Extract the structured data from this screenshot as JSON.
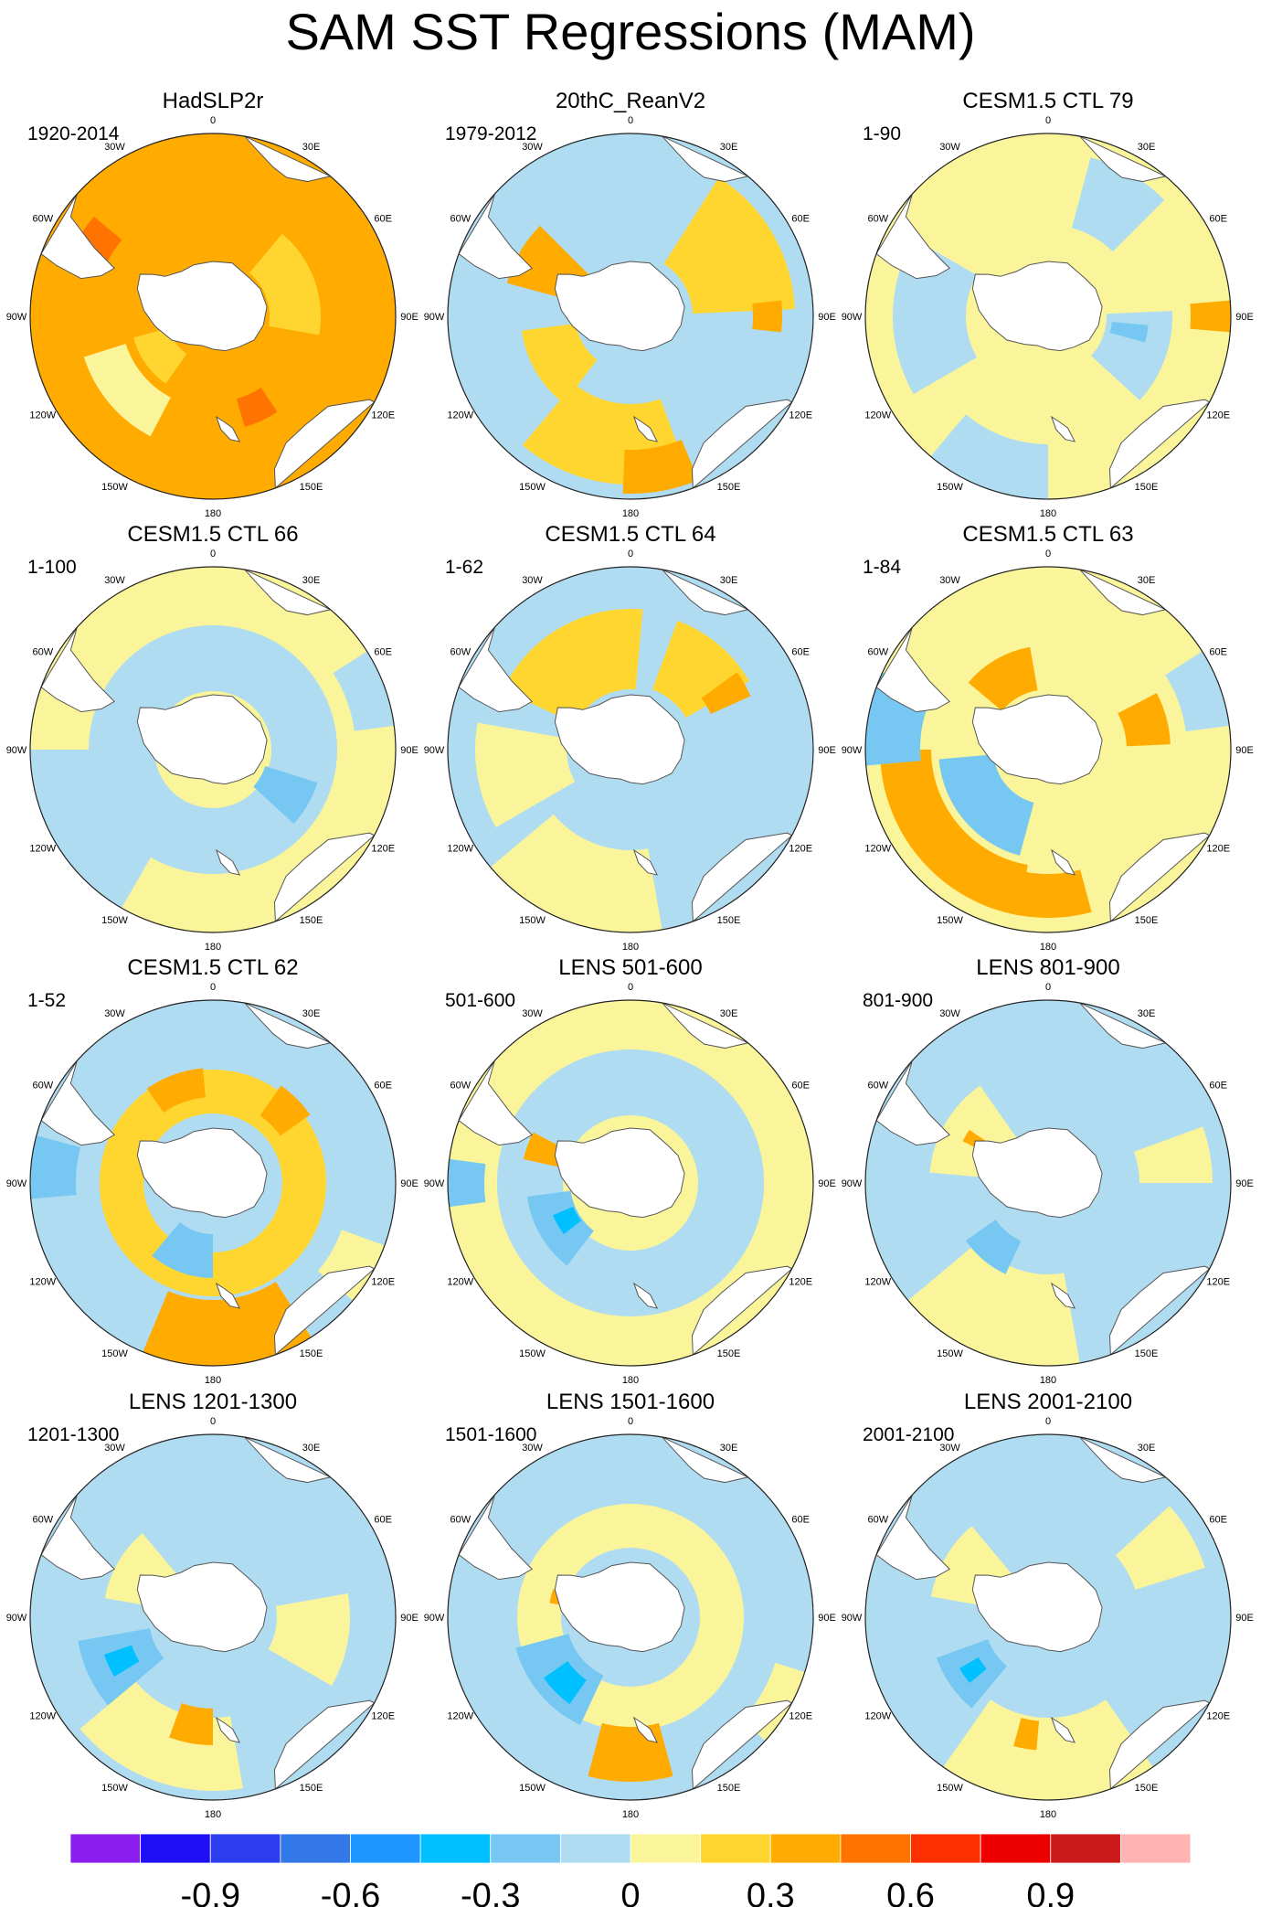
{
  "figure": {
    "title": "SAM SST Regressions (MAM)"
  },
  "colors": {
    "land": "#ffffff",
    "coast": "#555555",
    "boundary": "#222222",
    "level_colors": [
      "#8a1ef0",
      "#1e10f5",
      "#2c3ef0",
      "#3378e8",
      "#1e96ff",
      "#00c0ff",
      "#76c8f2",
      "#b0dcf2",
      "#faf59a",
      "#ffd530",
      "#ffab00",
      "#ff7400",
      "#ff3000",
      "#ee0000",
      "#cc1a1a",
      "#ffb4b4"
    ]
  },
  "chart_data": {
    "type": "polar-map-panels",
    "projection": "south polar stereographic",
    "longitude_labels": [
      "0",
      "30E",
      "60E",
      "90E",
      "120E",
      "150E",
      "180",
      "150W",
      "120W",
      "90W",
      "60W",
      "30W"
    ],
    "colorbar": {
      "levels": [
        -1.05,
        -0.9,
        -0.75,
        -0.6,
        -0.45,
        -0.3,
        -0.15,
        0,
        0.15,
        0.3,
        0.45,
        0.6,
        0.75,
        0.9,
        1.05
      ],
      "tick_labels": [
        "-0.9",
        "-0.6",
        "-0.3",
        "0",
        "0.3",
        "0.6",
        "0.9"
      ],
      "tick_values": [
        -0.9,
        -0.6,
        -0.3,
        0,
        0.3,
        0.6,
        0.9
      ]
    },
    "panels": [
      {
        "title": "HadSLP2r",
        "period": "1920-2014",
        "background": 0.3,
        "features": [
          {
            "lon": 230,
            "r": 0.62,
            "w": 45,
            "dr": 0.12,
            "v": 0.05
          },
          {
            "lon": 235,
            "r": 0.35,
            "w": 40,
            "dr": 0.1,
            "v": 0.15
          },
          {
            "lon": 70,
            "r": 0.45,
            "w": 60,
            "dr": 0.14,
            "v": 0.2
          },
          {
            "lon": 300,
            "r": 0.75,
            "w": 20,
            "dr": 0.1,
            "v": 0.45
          },
          {
            "lon": 155,
            "r": 0.55,
            "w": 18,
            "dr": 0.08,
            "v": 0.5
          }
        ]
      },
      {
        "title": "20thC_ReanV2",
        "period": "1979-2012",
        "background": -0.1,
        "features": [
          {
            "lon": 60,
            "r": 0.62,
            "w": 55,
            "dr": 0.28,
            "v": 0.15
          },
          {
            "lon": 190,
            "r": 0.7,
            "w": 60,
            "dr": 0.22,
            "v": 0.15
          },
          {
            "lon": 240,
            "r": 0.45,
            "w": 45,
            "dr": 0.15,
            "v": 0.15
          },
          {
            "lon": 300,
            "r": 0.5,
            "w": 30,
            "dr": 0.2,
            "v": 0.3
          },
          {
            "lon": 170,
            "r": 0.85,
            "w": 25,
            "dr": 0.12,
            "v": 0.3
          },
          {
            "lon": 90,
            "r": 0.75,
            "w": 12,
            "dr": 0.08,
            "v": 0.3
          }
        ]
      },
      {
        "title": "CESM1.5 CTL 79",
        "period": "1-90",
        "background": 0.1,
        "features": [
          {
            "lon": 270,
            "r": 0.65,
            "w": 60,
            "dr": 0.2,
            "v": -0.1
          },
          {
            "lon": 110,
            "r": 0.5,
            "w": 45,
            "dr": 0.18,
            "v": -0.1
          },
          {
            "lon": 30,
            "r": 0.7,
            "w": 30,
            "dr": 0.2,
            "v": -0.05
          },
          {
            "lon": 200,
            "r": 0.85,
            "w": 40,
            "dr": 0.15,
            "v": -0.1
          },
          {
            "lon": 100,
            "r": 0.45,
            "w": 10,
            "dr": 0.1,
            "v": -0.25
          },
          {
            "lon": 90,
            "r": 0.9,
            "w": 10,
            "dr": 0.12,
            "v": 0.3
          }
        ]
      },
      {
        "title": "CESM1.5 CTL 66",
        "period": "1-100",
        "background": 0.1,
        "features": [
          {
            "lon": 0,
            "r": 0.5,
            "w": 360,
            "dr": 0.18,
            "v": -0.1
          },
          {
            "lon": 240,
            "r": 0.7,
            "w": 60,
            "dr": 0.3,
            "v": -0.05
          },
          {
            "lon": 70,
            "r": 0.9,
            "w": 25,
            "dr": 0.12,
            "v": -0.1
          },
          {
            "lon": 120,
            "r": 0.45,
            "w": 25,
            "dr": 0.15,
            "v": -0.2
          }
        ]
      },
      {
        "title": "CESM1.5 CTL 64",
        "period": "1-62",
        "background": -0.1,
        "features": [
          {
            "lon": 330,
            "r": 0.55,
            "w": 70,
            "dr": 0.22,
            "v": 0.15
          },
          {
            "lon": 40,
            "r": 0.55,
            "w": 40,
            "dr": 0.2,
            "v": 0.15
          },
          {
            "lon": 60,
            "r": 0.6,
            "w": 12,
            "dr": 0.12,
            "v": 0.3
          },
          {
            "lon": 200,
            "r": 0.8,
            "w": 60,
            "dr": 0.25,
            "v": 0.1
          },
          {
            "lon": 260,
            "r": 0.6,
            "w": 40,
            "dr": 0.25,
            "v": 0.1
          }
        ]
      },
      {
        "title": "CESM1.5 CTL 63",
        "period": "1-84",
        "background": 0.1,
        "features": [
          {
            "lon": 230,
            "r": 0.45,
            "w": 70,
            "dr": 0.15,
            "v": -0.25
          },
          {
            "lon": 230,
            "r": 0.78,
            "w": 80,
            "dr": 0.14,
            "v": 0.3
          },
          {
            "lon": 185,
            "r": 0.8,
            "w": 40,
            "dr": 0.12,
            "v": 0.35
          },
          {
            "lon": 75,
            "r": 0.55,
            "w": 25,
            "dr": 0.12,
            "v": 0.35
          },
          {
            "lon": 330,
            "r": 0.45,
            "w": 40,
            "dr": 0.12,
            "v": 0.35
          },
          {
            "lon": 280,
            "r": 0.9,
            "w": 30,
            "dr": 0.2,
            "v": -0.2
          },
          {
            "lon": 70,
            "r": 0.9,
            "w": 25,
            "dr": 0.14,
            "v": -0.1
          }
        ]
      },
      {
        "title": "CESM1.5 CTL 62",
        "period": "1-52",
        "background": -0.1,
        "features": [
          {
            "lon": 0,
            "r": 0.5,
            "w": 360,
            "dr": 0.12,
            "v": 0.15
          },
          {
            "lon": 340,
            "r": 0.55,
            "w": 30,
            "dr": 0.08,
            "v": 0.35
          },
          {
            "lon": 45,
            "r": 0.55,
            "w": 20,
            "dr": 0.1,
            "v": 0.35
          },
          {
            "lon": 175,
            "r": 0.82,
            "w": 55,
            "dr": 0.18,
            "v": 0.35
          },
          {
            "lon": 275,
            "r": 0.9,
            "w": 20,
            "dr": 0.15,
            "v": -0.3
          },
          {
            "lon": 200,
            "r": 0.4,
            "w": 40,
            "dr": 0.12,
            "v": -0.2
          },
          {
            "lon": 120,
            "r": 0.9,
            "w": 20,
            "dr": 0.15,
            "v": 0.1
          }
        ]
      },
      {
        "title": "LENS 501-600",
        "period": "501-600",
        "background": 0.1,
        "features": [
          {
            "lon": 0,
            "r": 0.55,
            "w": 360,
            "dr": 0.18,
            "v": -0.1
          },
          {
            "lon": 240,
            "r": 0.45,
            "w": 45,
            "dr": 0.12,
            "v": -0.25
          },
          {
            "lon": 240,
            "r": 0.4,
            "w": 15,
            "dr": 0.06,
            "v": -0.35
          },
          {
            "lon": 290,
            "r": 0.5,
            "w": 15,
            "dr": 0.1,
            "v": 0.3
          },
          {
            "lon": 270,
            "r": 0.95,
            "w": 15,
            "dr": 0.15,
            "v": -0.25
          }
        ]
      },
      {
        "title": "LENS 801-900",
        "period": "801-900",
        "background": -0.1,
        "features": [
          {
            "lon": 200,
            "r": 0.75,
            "w": 60,
            "dr": 0.25,
            "v": 0.1
          },
          {
            "lon": 300,
            "r": 0.45,
            "w": 50,
            "dr": 0.2,
            "v": 0.1
          },
          {
            "lon": 80,
            "r": 0.7,
            "w": 20,
            "dr": 0.2,
            "v": 0.1
          },
          {
            "lon": 220,
            "r": 0.45,
            "w": 30,
            "dr": 0.1,
            "v": -0.25
          },
          {
            "lon": 300,
            "r": 0.4,
            "w": 8,
            "dr": 0.12,
            "v": 0.3
          }
        ]
      },
      {
        "title": "LENS 1201-1300",
        "period": "1201-1300",
        "background": -0.1,
        "features": [
          {
            "lon": 200,
            "r": 0.75,
            "w": 60,
            "dr": 0.2,
            "v": 0.1
          },
          {
            "lon": 300,
            "r": 0.45,
            "w": 40,
            "dr": 0.15,
            "v": 0.1
          },
          {
            "lon": 100,
            "r": 0.55,
            "w": 40,
            "dr": 0.2,
            "v": 0.1
          },
          {
            "lon": 245,
            "r": 0.55,
            "w": 30,
            "dr": 0.2,
            "v": -0.25
          },
          {
            "lon": 245,
            "r": 0.55,
            "w": 12,
            "dr": 0.08,
            "v": -0.4
          },
          {
            "lon": 190,
            "r": 0.6,
            "w": 20,
            "dr": 0.1,
            "v": 0.35
          }
        ]
      },
      {
        "title": "LENS 1501-1600",
        "period": "1501-1600",
        "background": -0.1,
        "features": [
          {
            "lon": 0,
            "r": 0.5,
            "w": 360,
            "dr": 0.12,
            "v": 0.1
          },
          {
            "lon": 230,
            "r": 0.5,
            "w": 50,
            "dr": 0.15,
            "v": -0.25
          },
          {
            "lon": 225,
            "r": 0.5,
            "w": 20,
            "dr": 0.08,
            "v": -0.4
          },
          {
            "lon": 180,
            "r": 0.75,
            "w": 30,
            "dr": 0.15,
            "v": 0.35
          },
          {
            "lon": 285,
            "r": 0.35,
            "w": 10,
            "dr": 0.1,
            "v": 0.3
          },
          {
            "lon": 120,
            "r": 0.95,
            "w": 25,
            "dr": 0.12,
            "v": 0.1
          }
        ]
      },
      {
        "title": "LENS 2001-2100",
        "period": "2001-2100",
        "background": -0.1,
        "features": [
          {
            "lon": 180,
            "r": 0.8,
            "w": 70,
            "dr": 0.25,
            "v": 0.1
          },
          {
            "lon": 300,
            "r": 0.45,
            "w": 40,
            "dr": 0.2,
            "v": 0.1
          },
          {
            "lon": 60,
            "r": 0.7,
            "w": 25,
            "dr": 0.2,
            "v": 0.1
          },
          {
            "lon": 235,
            "r": 0.5,
            "w": 30,
            "dr": 0.15,
            "v": -0.25
          },
          {
            "lon": 235,
            "r": 0.5,
            "w": 10,
            "dr": 0.06,
            "v": -0.35
          },
          {
            "lon": 190,
            "r": 0.65,
            "w": 10,
            "dr": 0.08,
            "v": 0.3
          }
        ]
      }
    ]
  }
}
